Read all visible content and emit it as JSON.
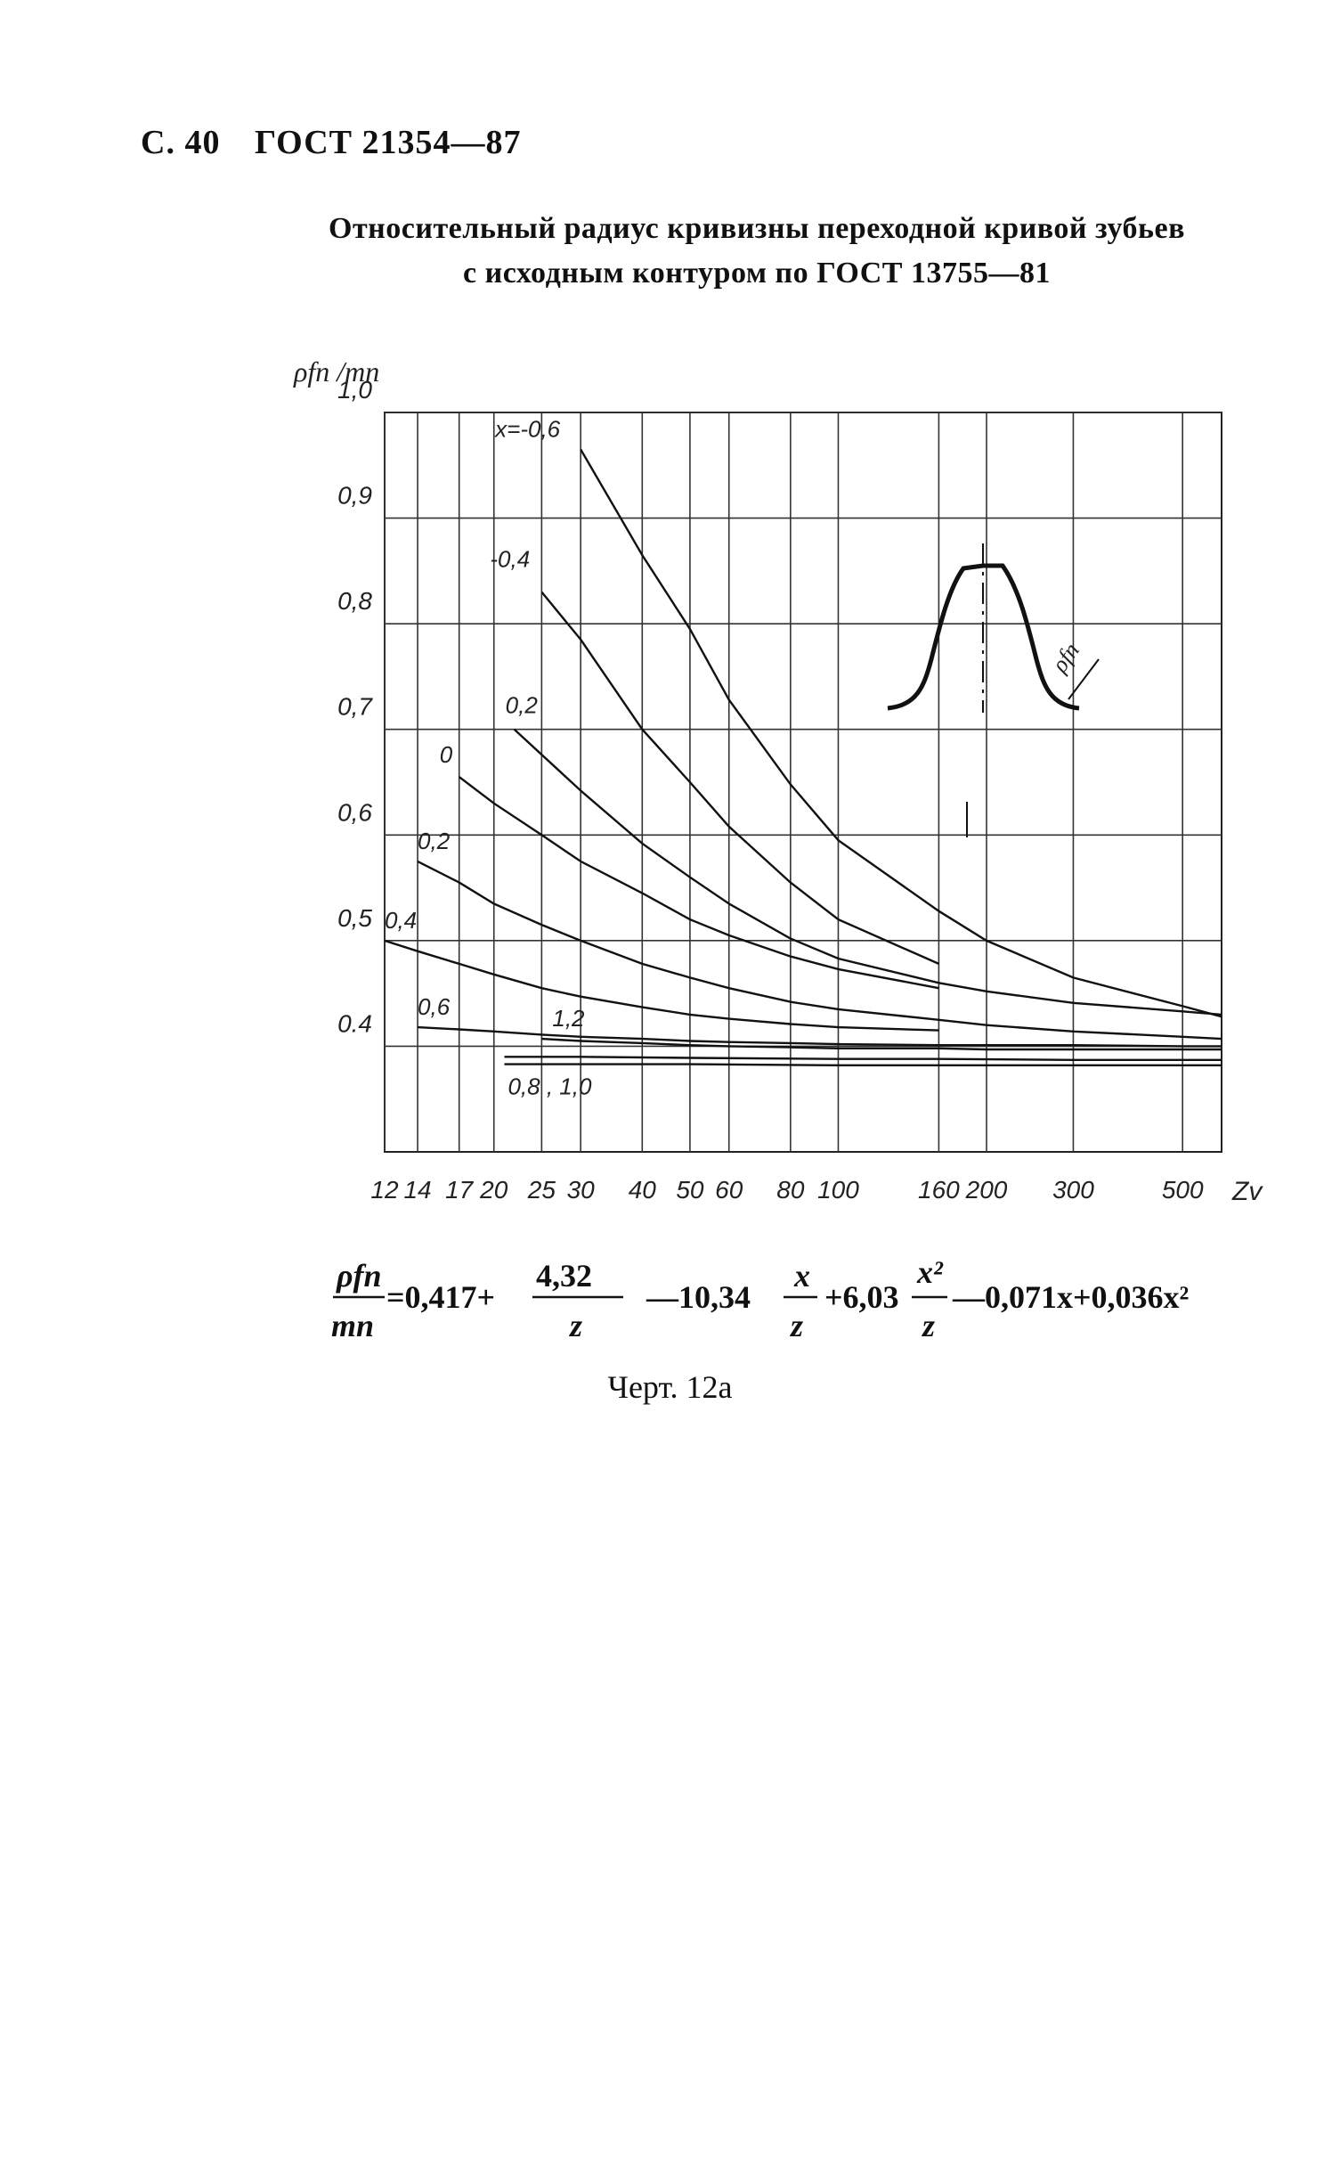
{
  "header": {
    "page": "С. 40",
    "standard": "ГОСТ 21354—87"
  },
  "title": {
    "line1": "Относительный радиус кривизны переходной кривой зубьев",
    "line2": "с исходным контуром по ГОСТ 13755—81"
  },
  "chart_data": {
    "type": "line",
    "xscale": "log",
    "ylabel": "ρfn /mn",
    "xlabel": "Zv",
    "ylim": [
      0.3,
      1.0
    ],
    "xlim": [
      12,
      600
    ],
    "x_ticks": [
      12,
      14,
      17,
      20,
      25,
      30,
      40,
      50,
      60,
      80,
      100,
      160,
      200,
      300,
      500
    ],
    "x_tick_labels": [
      "12",
      "14",
      "17",
      "20",
      "25",
      "30",
      "40",
      "50",
      "60",
      "80",
      "100",
      "160",
      "200",
      "300",
      "500"
    ],
    "y_ticks": [
      0.4,
      0.5,
      0.6,
      0.7,
      0.8,
      0.9,
      1.0
    ],
    "y_tick_labels": [
      "0.4",
      "0,5",
      "0,6",
      "0,7",
      "0,8",
      "0,9",
      "1,0"
    ],
    "series": [
      {
        "name": "x=-0,6",
        "x": [
          30,
          40,
          50,
          60,
          80,
          100,
          160,
          200,
          300,
          500,
          600
        ],
        "y": [
          0.965,
          0.865,
          0.795,
          0.728,
          0.648,
          0.595,
          0.528,
          0.5,
          0.465,
          0.438,
          0.428
        ]
      },
      {
        "name": "-0,4",
        "x": [
          25,
          30,
          40,
          50,
          60,
          80,
          100,
          160
        ],
        "y": [
          0.83,
          0.785,
          0.7,
          0.65,
          0.608,
          0.555,
          0.52,
          0.478
        ]
      },
      {
        "name": "0,2",
        "x": [
          22,
          30,
          40,
          50,
          60,
          80,
          100,
          160,
          200,
          300,
          500,
          600
        ],
        "y": [
          0.7,
          0.642,
          0.592,
          0.56,
          0.535,
          0.502,
          0.483,
          0.46,
          0.452,
          0.441,
          0.433,
          0.43
        ]
      },
      {
        "name": "0",
        "x": [
          17,
          20,
          25,
          30,
          40,
          50,
          60,
          80,
          100,
          160
        ],
        "y": [
          0.655,
          0.63,
          0.6,
          0.575,
          0.545,
          0.52,
          0.505,
          0.485,
          0.473,
          0.455
        ]
      },
      {
        "name": "0,2",
        "x": [
          14,
          17,
          20,
          25,
          30,
          40,
          50,
          60,
          80,
          100,
          160,
          200,
          300,
          500,
          600
        ],
        "y": [
          0.575,
          0.555,
          0.535,
          0.515,
          0.5,
          0.478,
          0.465,
          0.455,
          0.442,
          0.435,
          0.425,
          0.42,
          0.414,
          0.409,
          0.407
        ]
      },
      {
        "name": "0,4",
        "x": [
          12,
          14,
          17,
          20,
          25,
          30,
          40,
          50,
          60,
          80,
          100,
          160
        ],
        "y": [
          0.5,
          0.49,
          0.478,
          0.468,
          0.455,
          0.447,
          0.437,
          0.43,
          0.426,
          0.421,
          0.418,
          0.415
        ]
      },
      {
        "name": "0,6",
        "x": [
          14,
          17,
          20,
          25,
          30,
          40,
          50,
          60,
          80,
          100,
          160,
          200,
          300,
          500,
          600
        ],
        "y": [
          0.418,
          0.416,
          0.414,
          0.411,
          0.409,
          0.407,
          0.405,
          0.404,
          0.403,
          0.402,
          0.401,
          0.401,
          0.401,
          0.4,
          0.4
        ]
      },
      {
        "name": "1,2",
        "x": [
          25,
          30,
          40,
          50,
          60,
          80,
          100,
          160,
          200,
          300,
          500,
          600
        ],
        "y": [
          0.407,
          0.405,
          0.403,
          0.401,
          0.4,
          0.399,
          0.398,
          0.398,
          0.397,
          0.397,
          0.397,
          0.397
        ]
      },
      {
        "name": "0,8 , 1,0",
        "x": [
          21,
          30,
          50,
          100,
          160,
          300,
          600
        ],
        "y": [
          0.39,
          0.39,
          0.389,
          0.388,
          0.388,
          0.387,
          0.387
        ]
      },
      {
        "name": "",
        "x": [
          21,
          30,
          50,
          100,
          160,
          300,
          600
        ],
        "y": [
          0.383,
          0.383,
          0.383,
          0.382,
          0.382,
          0.382,
          0.382
        ]
      }
    ],
    "inset_label": "ρfn"
  },
  "formula": {
    "lhs_num": "ρfn",
    "lhs_den": "mn",
    "c0": "=0,417+",
    "t1_num": "4,32",
    "t1_den": "z",
    "c1": "—10,34",
    "t2_num": "x",
    "t2_den": "z",
    "c2": "+6,03",
    "t3_num": "x²",
    "t3_den": "z",
    "c3": "—0,071x+0,036x²"
  },
  "caption": "Черт. 12а"
}
